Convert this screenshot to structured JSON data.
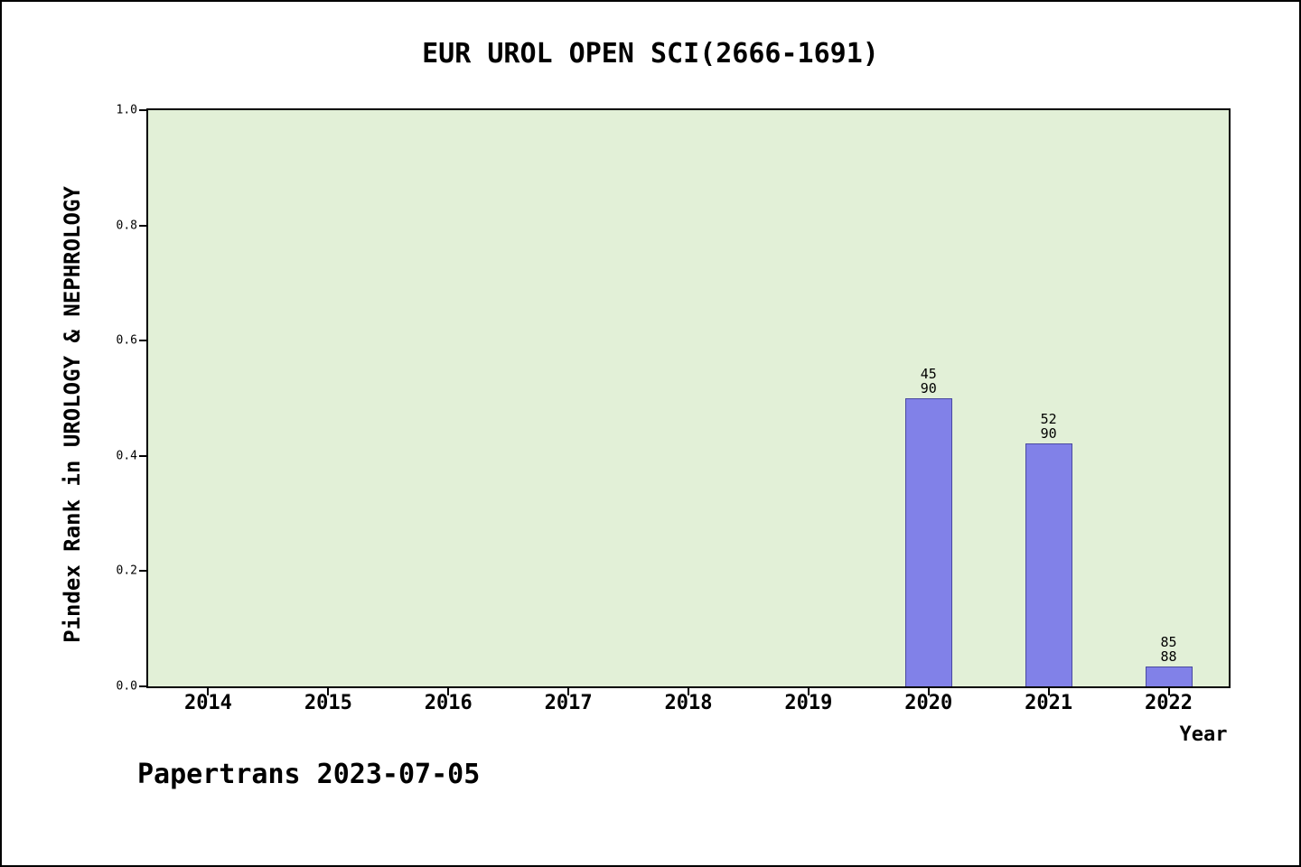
{
  "footer": "Papertrans 2023-07-05",
  "chart_data": {
    "type": "bar",
    "title": "EUR UROL OPEN SCI(2666-1691)",
    "xlabel": "Year",
    "ylabel": "Pindex Rank in UROLOGY & NEPHROLOGY",
    "categories": [
      "2014",
      "2015",
      "2016",
      "2017",
      "2018",
      "2019",
      "2020",
      "2021",
      "2022"
    ],
    "bars": [
      {
        "category": "2020",
        "value": 0.5,
        "label_numerator": "45",
        "label_denominator": "90"
      },
      {
        "category": "2021",
        "value": 0.422,
        "label_numerator": "52",
        "label_denominator": "90"
      },
      {
        "category": "2022",
        "value": 0.034,
        "label_numerator": "85",
        "label_denominator": "88"
      }
    ],
    "ylim": [
      0,
      1
    ],
    "yticks": [
      {
        "value": 0.0,
        "label": "0.0"
      },
      {
        "value": 0.2,
        "label": "0.2"
      },
      {
        "value": 0.4,
        "label": "0.4"
      },
      {
        "value": 0.6,
        "label": "0.6"
      },
      {
        "value": 0.8,
        "label": "0.8"
      },
      {
        "value": 1.0,
        "label": "1.0"
      }
    ],
    "grid": false,
    "legend": null,
    "layout": {
      "plot_background": "#e2f0d7",
      "bar_fill": "#8181e8",
      "frame_color": "#000000"
    }
  }
}
